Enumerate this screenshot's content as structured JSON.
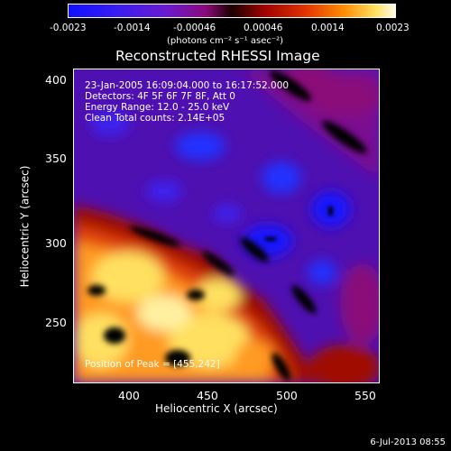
{
  "colorbar": {
    "ticks": [
      "-0.0023",
      "-0.0014",
      "-0.00046",
      "0.00046",
      "0.0014",
      "0.0023"
    ],
    "units": "(photons cm⁻² s⁻¹ asec⁻²)"
  },
  "title": "Reconstructed RHESSI Image",
  "info": {
    "time": "23-Jan-2005 16:09:04.000 to 16:17:52.000",
    "detectors": "Detectors: 4F 5F 6F 7F 8F, Att 0",
    "energy": "Energy Range: 12.0 - 25.0 keV",
    "clean": "Clean     Total counts: 2.14E+05",
    "peak": "Position of Peak = [455,242]"
  },
  "axes": {
    "xlabel": "Heliocentric X (arcsec)",
    "ylabel": "Heliocentric Y (arcsec)",
    "xticks": [
      "400",
      "450",
      "500",
      "550"
    ],
    "yticks": [
      "400",
      "350",
      "300",
      "250"
    ]
  },
  "footer": {
    "date": "6-Jul-2013 08:55"
  },
  "colors": {
    "background": "#000000",
    "blue": "#1010ff",
    "purple": "#6a1ad0",
    "red": "#a00000",
    "yellow": "#ffe060"
  }
}
